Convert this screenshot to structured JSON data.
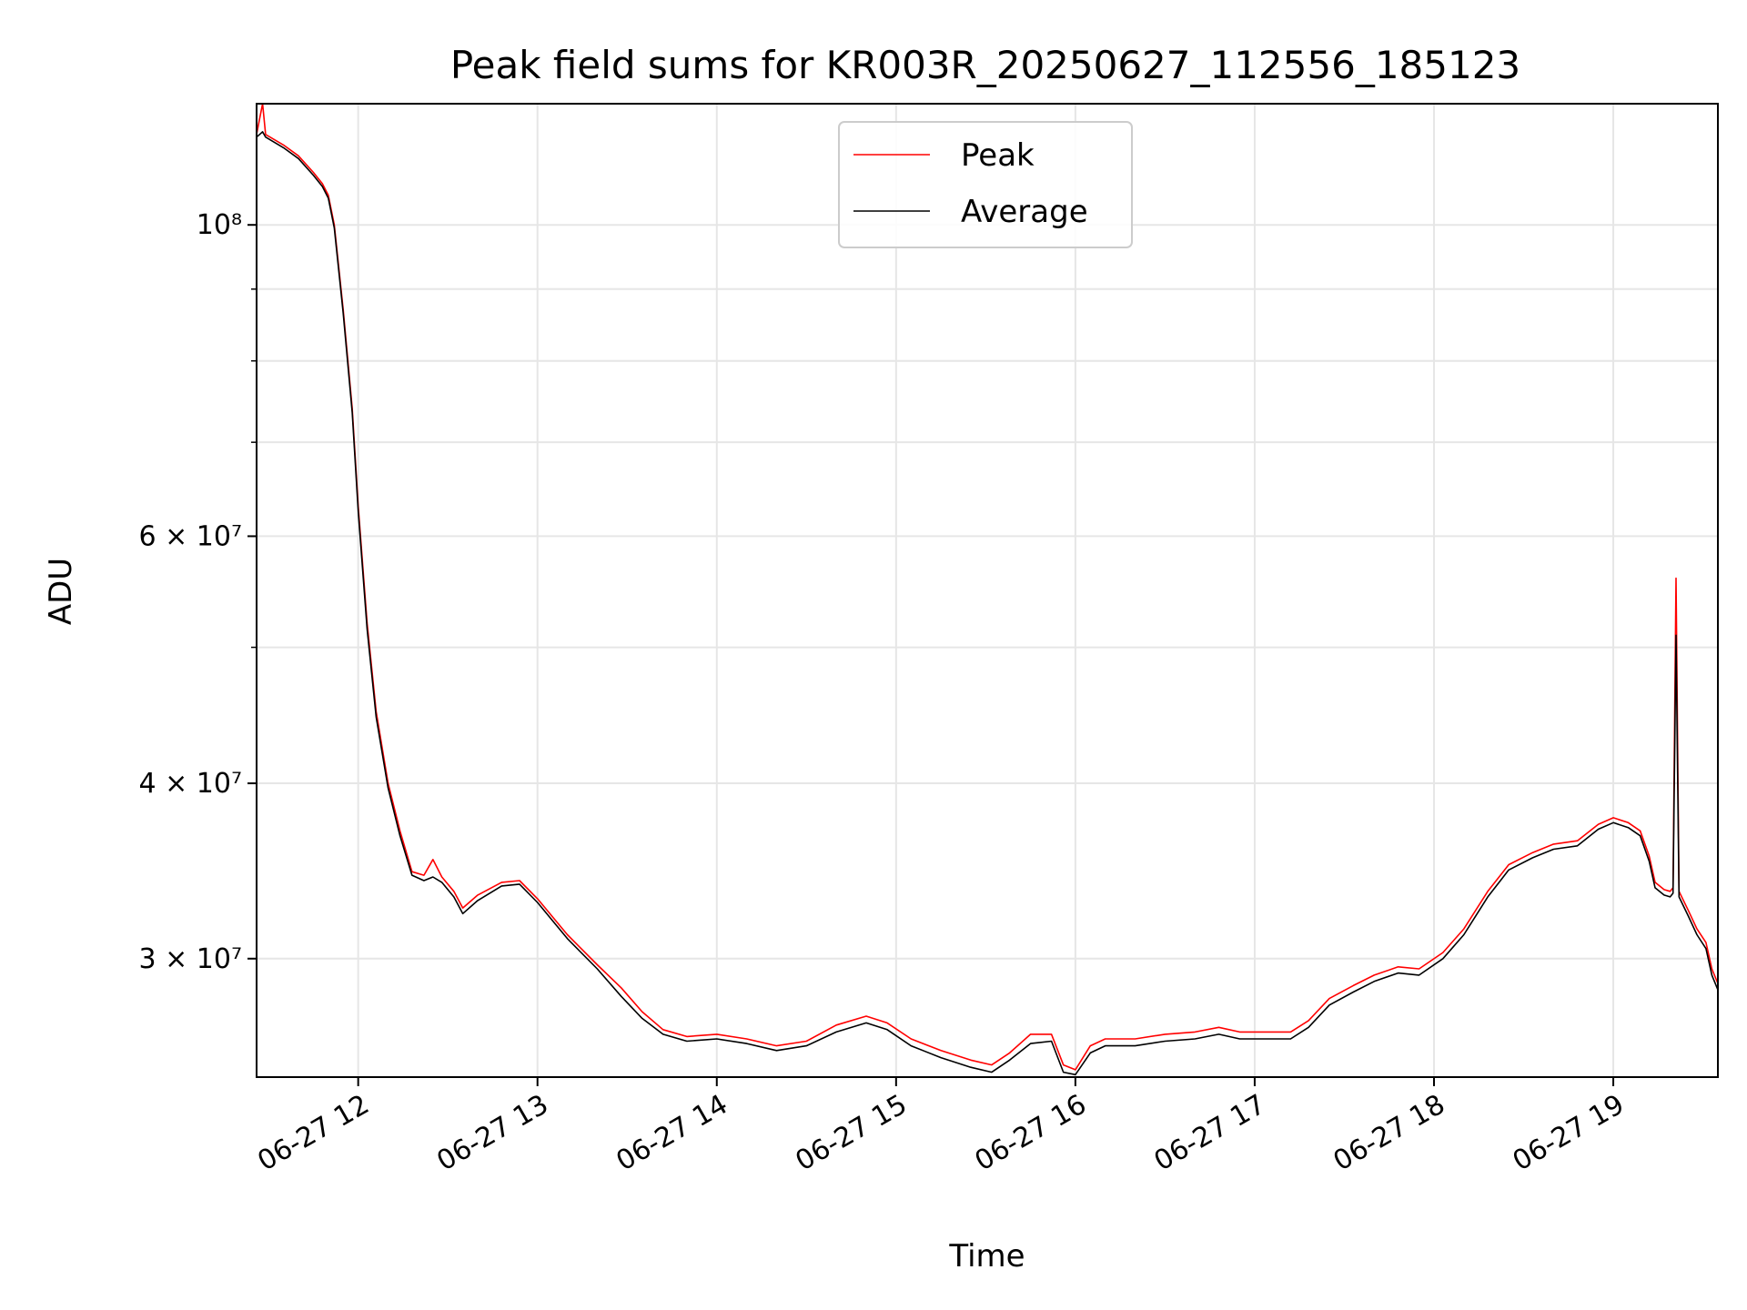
{
  "chart_data": {
    "type": "line",
    "title": "Peak field sums for KR003R_20250627_112556_185123",
    "xlabel": "Time",
    "ylabel": "ADU",
    "yscale": "log",
    "xlim": [
      "06-27 11:26",
      "06-27 19:35"
    ],
    "ylim": [
      24700000,
      122000000
    ],
    "x_ticks": [
      "06-27 12",
      "06-27 13",
      "06-27 14",
      "06-27 15",
      "06-27 16",
      "06-27 17",
      "06-27 18",
      "06-27 19"
    ],
    "y_ticks": [
      {
        "value": 30000000,
        "label": "3 × 10⁷",
        "mantissa": "3",
        "exp": "7"
      },
      {
        "value": 40000000,
        "label": "4 × 10⁷",
        "mantissa": "4",
        "exp": "7"
      },
      {
        "value": 60000000,
        "label": "6 × 10⁷",
        "mantissa": "6",
        "exp": "7"
      },
      {
        "value": 100000000,
        "label": "10⁸",
        "mantissa": "",
        "exp": "8"
      }
    ],
    "grid": true,
    "legend_position": "top-center",
    "series": [
      {
        "name": "Peak",
        "color": "#ff0000",
        "points": [
          [
            "06-27 11:26",
            116000000
          ],
          [
            "06-27 11:27",
            119000000
          ],
          [
            "06-27 11:28",
            122000000
          ],
          [
            "06-27 11:29",
            116000000
          ],
          [
            "06-27 11:35",
            114000000
          ],
          [
            "06-27 11:40",
            112000000
          ],
          [
            "06-27 11:45",
            109000000
          ],
          [
            "06-27 11:48",
            107000000
          ],
          [
            "06-27 11:50",
            105000000
          ],
          [
            "06-27 11:52",
            100000000
          ],
          [
            "06-27 11:55",
            87000000
          ],
          [
            "06-27 11:58",
            74000000
          ],
          [
            "06-27 12:00",
            63000000
          ],
          [
            "06-27 12:03",
            52000000
          ],
          [
            "06-27 12:06",
            45000000
          ],
          [
            "06-27 12:10",
            40000000
          ],
          [
            "06-27 12:14",
            37000000
          ],
          [
            "06-27 12:18",
            34600000
          ],
          [
            "06-27 12:22",
            34400000
          ],
          [
            "06-27 12:25",
            35300000
          ],
          [
            "06-27 12:28",
            34300000
          ],
          [
            "06-27 12:32",
            33500000
          ],
          [
            "06-27 12:35",
            32600000
          ],
          [
            "06-27 12:40",
            33300000
          ],
          [
            "06-27 12:48",
            34000000
          ],
          [
            "06-27 12:54",
            34100000
          ],
          [
            "06-27 13:00",
            33100000
          ],
          [
            "06-27 13:10",
            31200000
          ],
          [
            "06-27 13:20",
            29700000
          ],
          [
            "06-27 13:28",
            28600000
          ],
          [
            "06-27 13:35",
            27500000
          ],
          [
            "06-27 13:42",
            26700000
          ],
          [
            "06-27 13:50",
            26400000
          ],
          [
            "06-27 14:00",
            26500000
          ],
          [
            "06-27 14:10",
            26300000
          ],
          [
            "06-27 14:20",
            26000000
          ],
          [
            "06-27 14:30",
            26200000
          ],
          [
            "06-27 14:40",
            26900000
          ],
          [
            "06-27 14:50",
            27300000
          ],
          [
            "06-27 14:57",
            27000000
          ],
          [
            "06-27 15:05",
            26300000
          ],
          [
            "06-27 15:15",
            25800000
          ],
          [
            "06-27 15:25",
            25400000
          ],
          [
            "06-27 15:32",
            25200000
          ],
          [
            "06-27 15:38",
            25700000
          ],
          [
            "06-27 15:45",
            26500000
          ],
          [
            "06-27 15:52",
            26500000
          ],
          [
            "06-27 15:56",
            25200000
          ],
          [
            "06-27 16:00",
            25000000
          ],
          [
            "06-27 16:05",
            26000000
          ],
          [
            "06-27 16:10",
            26300000
          ],
          [
            "06-27 16:20",
            26300000
          ],
          [
            "06-27 16:30",
            26500000
          ],
          [
            "06-27 16:40",
            26600000
          ],
          [
            "06-27 16:48",
            26800000
          ],
          [
            "06-27 16:55",
            26600000
          ],
          [
            "06-27 17:05",
            26600000
          ],
          [
            "06-27 17:12",
            26600000
          ],
          [
            "06-27 17:18",
            27100000
          ],
          [
            "06-27 17:25",
            28100000
          ],
          [
            "06-27 17:33",
            28700000
          ],
          [
            "06-27 17:40",
            29200000
          ],
          [
            "06-27 17:48",
            29600000
          ],
          [
            "06-27 17:55",
            29500000
          ],
          [
            "06-27 18:03",
            30300000
          ],
          [
            "06-27 18:10",
            31500000
          ],
          [
            "06-27 18:18",
            33500000
          ],
          [
            "06-27 18:25",
            35000000
          ],
          [
            "06-27 18:33",
            35700000
          ],
          [
            "06-27 18:40",
            36200000
          ],
          [
            "06-27 18:48",
            36400000
          ],
          [
            "06-27 18:55",
            37400000
          ],
          [
            "06-27 19:00",
            37800000
          ],
          [
            "06-27 19:05",
            37500000
          ],
          [
            "06-27 19:09",
            37000000
          ],
          [
            "06-27 19:12",
            35500000
          ],
          [
            "06-27 19:14",
            34000000
          ],
          [
            "06-27 19:17",
            33600000
          ],
          [
            "06-27 19:19",
            33500000
          ],
          [
            "06-27 19:20",
            33700000
          ],
          [
            "06-27 19:21",
            56000000
          ],
          [
            "06-27 19:22",
            33500000
          ],
          [
            "06-27 19:25",
            32500000
          ],
          [
            "06-27 19:28",
            31500000
          ],
          [
            "06-27 19:31",
            30800000
          ],
          [
            "06-27 19:33",
            29500000
          ],
          [
            "06-27 19:35",
            28800000
          ]
        ]
      },
      {
        "name": "Average",
        "color": "#000000",
        "points": [
          [
            "06-27 11:26",
            115500000
          ],
          [
            "06-27 11:27",
            116000000
          ],
          [
            "06-27 11:28",
            116500000
          ],
          [
            "06-27 11:29",
            115500000
          ],
          [
            "06-27 11:35",
            113500000
          ],
          [
            "06-27 11:40",
            111500000
          ],
          [
            "06-27 11:45",
            108500000
          ],
          [
            "06-27 11:48",
            106500000
          ],
          [
            "06-27 11:50",
            104500000
          ],
          [
            "06-27 11:52",
            99500000
          ],
          [
            "06-27 11:55",
            86500000
          ],
          [
            "06-27 11:58",
            73500000
          ],
          [
            "06-27 12:00",
            62500000
          ],
          [
            "06-27 12:03",
            51500000
          ],
          [
            "06-27 12:06",
            44600000
          ],
          [
            "06-27 12:10",
            39700000
          ],
          [
            "06-27 12:14",
            36700000
          ],
          [
            "06-27 12:18",
            34400000
          ],
          [
            "06-27 12:22",
            34100000
          ],
          [
            "06-27 12:25",
            34300000
          ],
          [
            "06-27 12:28",
            34000000
          ],
          [
            "06-27 12:32",
            33200000
          ],
          [
            "06-27 12:35",
            32300000
          ],
          [
            "06-27 12:40",
            33000000
          ],
          [
            "06-27 12:48",
            33800000
          ],
          [
            "06-27 12:54",
            33900000
          ],
          [
            "06-27 13:00",
            32900000
          ],
          [
            "06-27 13:10",
            31000000
          ],
          [
            "06-27 13:20",
            29500000
          ],
          [
            "06-27 13:28",
            28200000
          ],
          [
            "06-27 13:35",
            27200000
          ],
          [
            "06-27 13:42",
            26500000
          ],
          [
            "06-27 13:50",
            26200000
          ],
          [
            "06-27 14:00",
            26300000
          ],
          [
            "06-27 14:10",
            26100000
          ],
          [
            "06-27 14:20",
            25800000
          ],
          [
            "06-27 14:30",
            26000000
          ],
          [
            "06-27 14:40",
            26600000
          ],
          [
            "06-27 14:50",
            27000000
          ],
          [
            "06-27 14:57",
            26700000
          ],
          [
            "06-27 15:05",
            26000000
          ],
          [
            "06-27 15:15",
            25500000
          ],
          [
            "06-27 15:25",
            25100000
          ],
          [
            "06-27 15:32",
            24900000
          ],
          [
            "06-27 15:38",
            25400000
          ],
          [
            "06-27 15:45",
            26100000
          ],
          [
            "06-27 15:52",
            26200000
          ],
          [
            "06-27 15:56",
            24900000
          ],
          [
            "06-27 16:00",
            24800000
          ],
          [
            "06-27 16:05",
            25700000
          ],
          [
            "06-27 16:10",
            26000000
          ],
          [
            "06-27 16:20",
            26000000
          ],
          [
            "06-27 16:30",
            26200000
          ],
          [
            "06-27 16:40",
            26300000
          ],
          [
            "06-27 16:48",
            26500000
          ],
          [
            "06-27 16:55",
            26300000
          ],
          [
            "06-27 17:05",
            26300000
          ],
          [
            "06-27 17:12",
            26300000
          ],
          [
            "06-27 17:18",
            26800000
          ],
          [
            "06-27 17:25",
            27800000
          ],
          [
            "06-27 17:33",
            28400000
          ],
          [
            "06-27 17:40",
            28900000
          ],
          [
            "06-27 17:48",
            29300000
          ],
          [
            "06-27 17:55",
            29200000
          ],
          [
            "06-27 18:03",
            30000000
          ],
          [
            "06-27 18:10",
            31200000
          ],
          [
            "06-27 18:18",
            33200000
          ],
          [
            "06-27 18:25",
            34700000
          ],
          [
            "06-27 18:33",
            35400000
          ],
          [
            "06-27 18:40",
            35900000
          ],
          [
            "06-27 18:48",
            36100000
          ],
          [
            "06-27 18:55",
            37100000
          ],
          [
            "06-27 19:00",
            37500000
          ],
          [
            "06-27 19:05",
            37200000
          ],
          [
            "06-27 19:09",
            36700000
          ],
          [
            "06-27 19:12",
            35200000
          ],
          [
            "06-27 19:14",
            33700000
          ],
          [
            "06-27 19:17",
            33300000
          ],
          [
            "06-27 19:19",
            33200000
          ],
          [
            "06-27 19:20",
            33400000
          ],
          [
            "06-27 19:21",
            51000000
          ],
          [
            "06-27 19:22",
            33200000
          ],
          [
            "06-27 19:25",
            32200000
          ],
          [
            "06-27 19:28",
            31200000
          ],
          [
            "06-27 19:31",
            30500000
          ],
          [
            "06-27 19:33",
            29200000
          ],
          [
            "06-27 19:35",
            28500000
          ]
        ]
      }
    ]
  }
}
